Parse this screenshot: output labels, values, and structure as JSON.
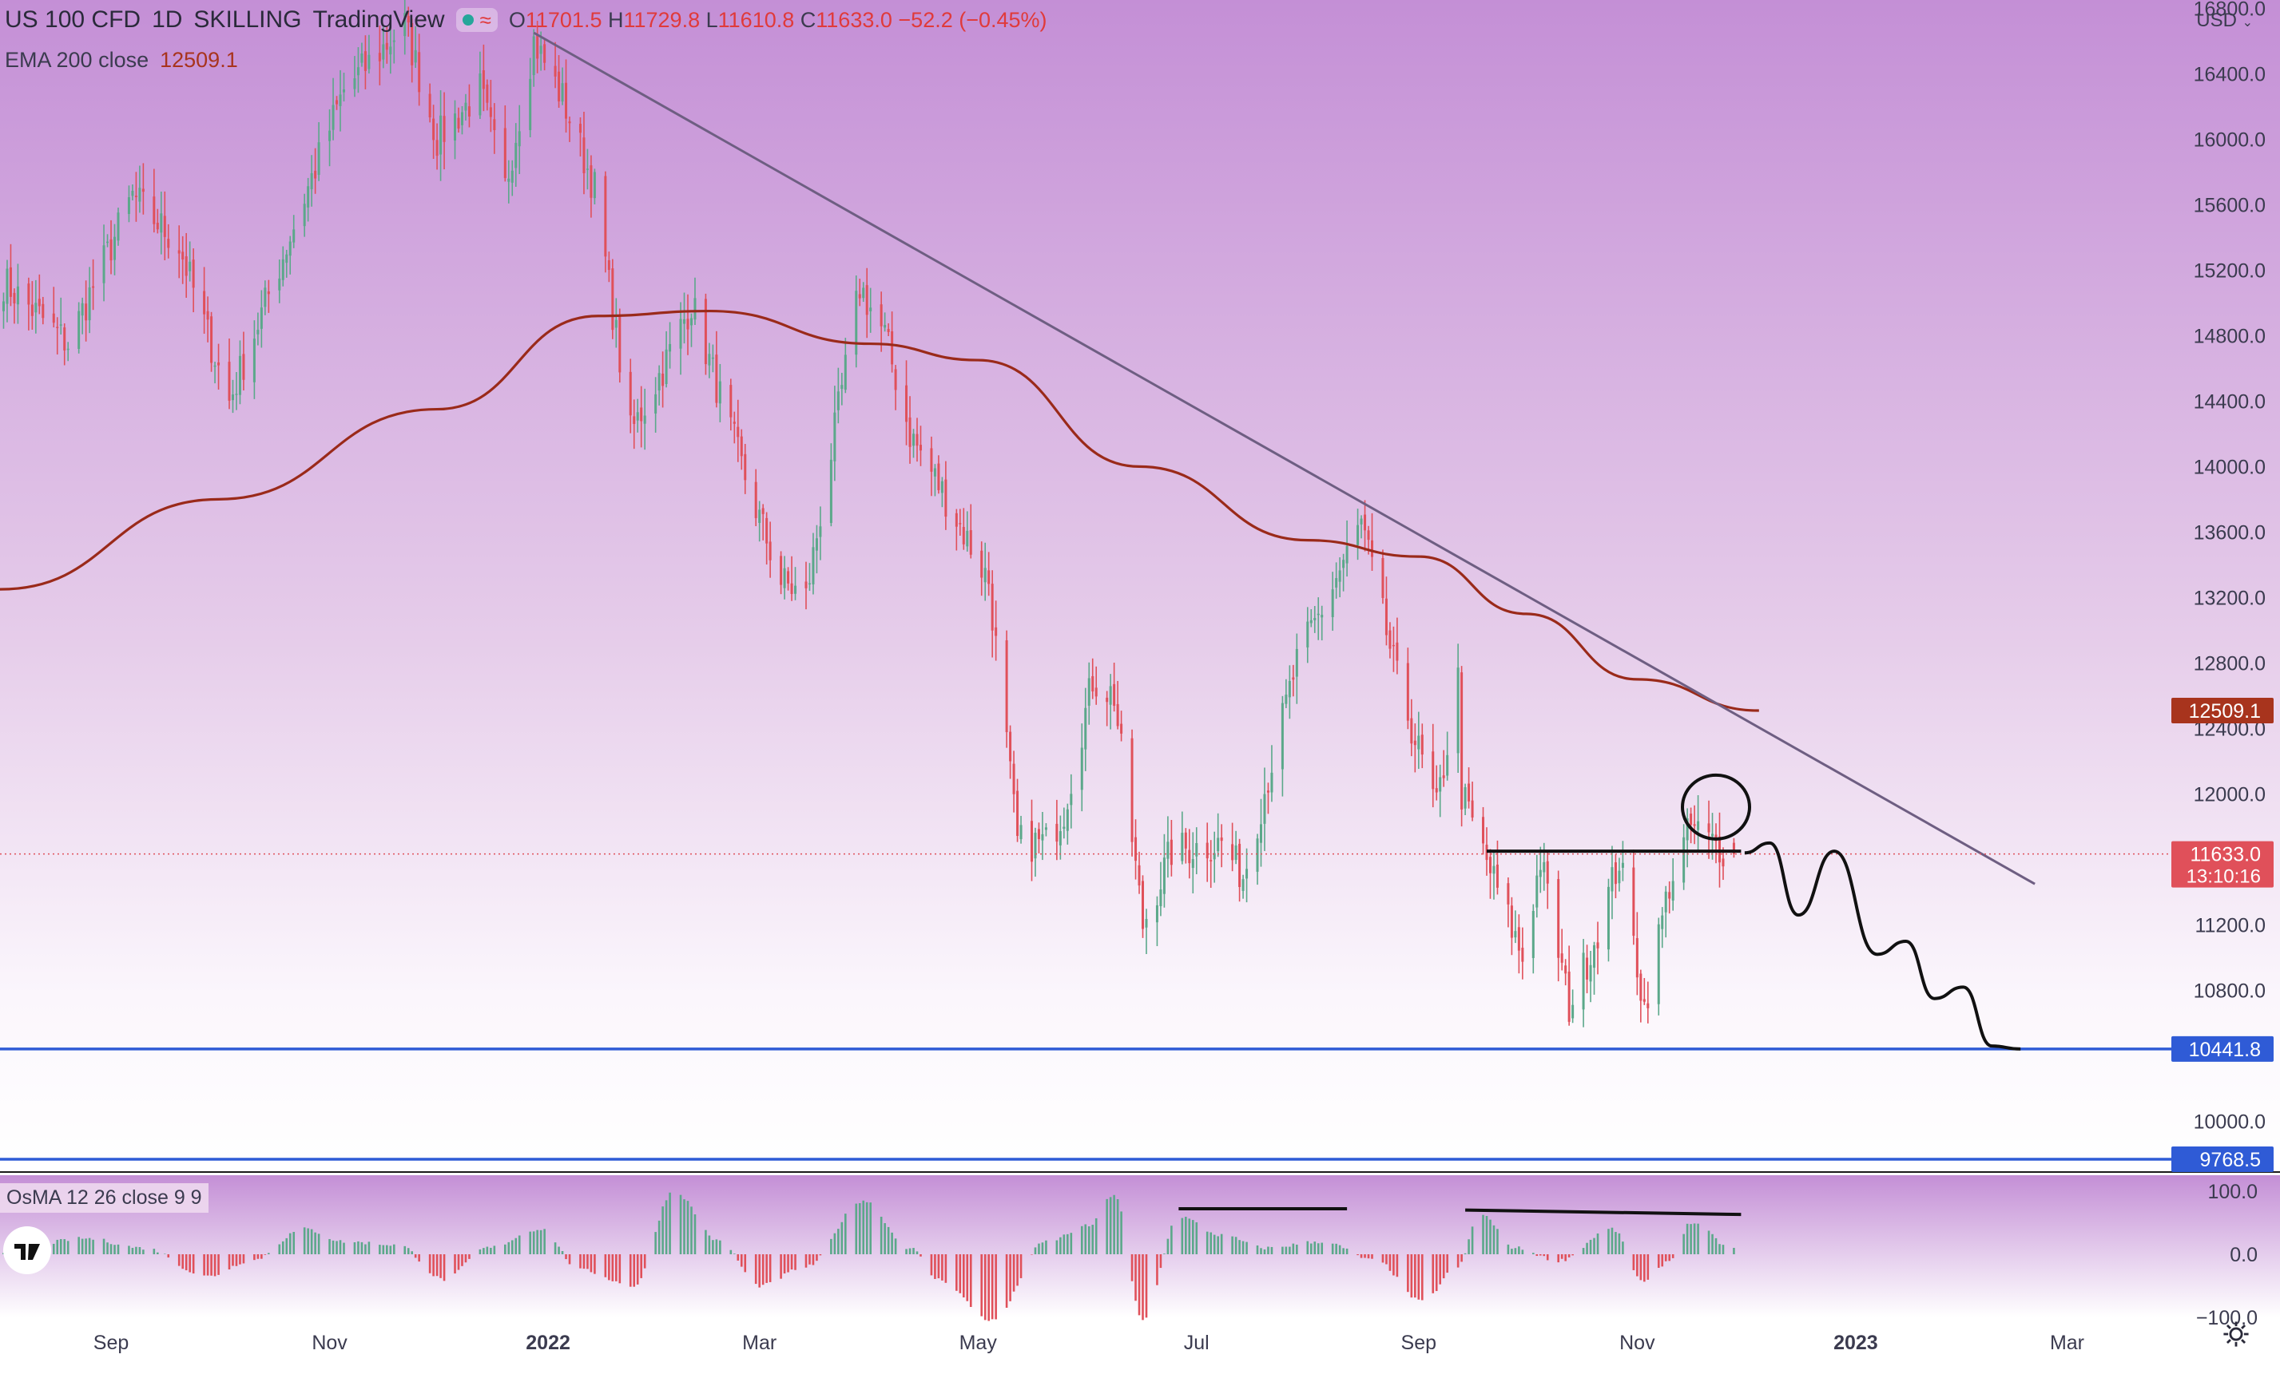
{
  "header": {
    "symbol": "US 100 CFD",
    "interval": "1D",
    "broker": "SKILLING",
    "platform": "TradingView",
    "ohlc": {
      "o_label": "O",
      "o": "11701.5",
      "h_label": "H",
      "h": "11729.8",
      "l_label": "L",
      "l": "11610.8",
      "c_label": "C",
      "c": "11633.0",
      "change": "−52.2 (−0.45%)"
    },
    "currency": "USD",
    "currency_menu_icon": "chevron-down-icon"
  },
  "ema_legend": {
    "label": "EMA 200 close",
    "value": "12509.1"
  },
  "osma_legend": {
    "label": "OsMA 12 26 close 9 9"
  },
  "price_axis_ticks": [
    "16800.0",
    "16400.0",
    "16000.0",
    "15600.0",
    "15200.0",
    "14800.0",
    "14400.0",
    "14000.0",
    "13600.0",
    "13200.0",
    "12800.0",
    "12400.0",
    "12000.0",
    "11200.0",
    "10800.0",
    "10000.0"
  ],
  "price_axis_tick_values": [
    16800,
    16400,
    16000,
    15600,
    15200,
    14800,
    14400,
    14000,
    13600,
    13200,
    12800,
    12400,
    12000,
    11200,
    10800,
    10000
  ],
  "price_labels": {
    "ema": "12509.1",
    "close": "11633.0",
    "countdown": "13:10:16",
    "support_1": "10441.8",
    "support_2": "9768.5"
  },
  "osma_axis_ticks": [
    "100.0",
    "0.0",
    "−100.0"
  ],
  "time_axis_labels": [
    "Sep",
    "Nov",
    "2022",
    "Mar",
    "May",
    "Jul",
    "Sep",
    "Nov",
    "2023",
    "Mar"
  ],
  "bold_time_labels": [
    "2022",
    "2023"
  ],
  "logo": "tradingview-logo-icon",
  "settings_icon": "gear-icon",
  "colors": {
    "bg_top": "#c48fd6",
    "bg_bottom": "#ffffff",
    "up": "#5ba88a",
    "down": "#e0505a",
    "ema": "#9a2a1a",
    "trendline": "#6e5e82",
    "support": "#2f5bd6",
    "annotation": "#111111",
    "close_label": "#e0505a",
    "ema_label": "#a8341d",
    "support_label": "#2f5bd6"
  },
  "chart_data": [
    {
      "type": "candlestick",
      "title": "US 100 CFD · 1D · SKILLING",
      "ylim": [
        9700,
        16850
      ],
      "x_range": [
        "2021-08-01",
        "2023-03-31"
      ],
      "last": {
        "open": 11701.5,
        "high": 11729.8,
        "low": 11610.8,
        "close": 11633.0,
        "change": -52.2,
        "change_pct": -0.45
      },
      "anchors": [
        {
          "date": "2021-08-01",
          "close": 15150
        },
        {
          "date": "2021-08-20",
          "close": 14750
        },
        {
          "date": "2021-09-07",
          "close": 15650
        },
        {
          "date": "2021-09-20",
          "close": 15350
        },
        {
          "date": "2021-10-04",
          "close": 14400
        },
        {
          "date": "2021-10-15",
          "close": 15050
        },
        {
          "date": "2021-11-05",
          "close": 16300
        },
        {
          "date": "2021-11-22",
          "close": 16700
        },
        {
          "date": "2021-12-01",
          "close": 16000
        },
        {
          "date": "2021-12-13",
          "close": 16300
        },
        {
          "date": "2021-12-20",
          "close": 15700
        },
        {
          "date": "2021-12-28",
          "close": 16600
        },
        {
          "date": "2022-01-05",
          "close": 16250
        },
        {
          "date": "2022-01-14",
          "close": 15700
        },
        {
          "date": "2022-01-24",
          "close": 14200
        },
        {
          "date": "2022-02-02",
          "close": 14600
        },
        {
          "date": "2022-02-10",
          "close": 15000
        },
        {
          "date": "2022-02-24",
          "close": 14000
        },
        {
          "date": "2022-03-07",
          "close": 13300
        },
        {
          "date": "2022-03-14",
          "close": 13200
        },
        {
          "date": "2022-03-29",
          "close": 15100
        },
        {
          "date": "2022-04-05",
          "close": 14800
        },
        {
          "date": "2022-04-12",
          "close": 14200
        },
        {
          "date": "2022-04-21",
          "close": 13850
        },
        {
          "date": "2022-05-04",
          "close": 13300
        },
        {
          "date": "2022-05-12",
          "close": 11700
        },
        {
          "date": "2022-05-20",
          "close": 11700
        },
        {
          "date": "2022-05-25",
          "close": 11900
        },
        {
          "date": "2022-06-02",
          "close": 12700
        },
        {
          "date": "2022-06-08",
          "close": 12600
        },
        {
          "date": "2022-06-16",
          "close": 11200
        },
        {
          "date": "2022-06-24",
          "close": 11650
        },
        {
          "date": "2022-07-08",
          "close": 11700
        },
        {
          "date": "2022-07-14",
          "close": 11500
        },
        {
          "date": "2022-07-29",
          "close": 12800
        },
        {
          "date": "2022-08-16",
          "close": 13650
        },
        {
          "date": "2022-08-26",
          "close": 12700
        },
        {
          "date": "2022-09-06",
          "close": 11900
        },
        {
          "date": "2022-09-12",
          "close": 12700
        },
        {
          "date": "2022-09-13",
          "close": 12000
        },
        {
          "date": "2022-09-30",
          "close": 11000
        },
        {
          "date": "2022-10-05",
          "close": 11600
        },
        {
          "date": "2022-10-13",
          "close": 10700
        },
        {
          "date": "2022-10-20",
          "close": 11100
        },
        {
          "date": "2022-10-27",
          "close": 11600
        },
        {
          "date": "2022-11-03",
          "close": 10700
        },
        {
          "date": "2022-11-10",
          "close": 11450
        },
        {
          "date": "2022-11-16",
          "close": 11800
        },
        {
          "date": "2022-11-22",
          "close": 11700
        },
        {
          "date": "2022-11-28",
          "close": 11633
        }
      ]
    },
    {
      "type": "line",
      "name": "EMA 200 close",
      "x": [
        "2021-08-01",
        "2021-10-01",
        "2021-12-01",
        "2022-01-15",
        "2022-02-15",
        "2022-04-01",
        "2022-05-01",
        "2022-06-15",
        "2022-08-01",
        "2022-09-01",
        "2022-10-01",
        "2022-11-01",
        "2022-12-05"
      ],
      "y": [
        13250,
        13800,
        14350,
        14920,
        14950,
        14750,
        14650,
        14000,
        13550,
        13450,
        13100,
        12700,
        12509.1
      ]
    },
    {
      "type": "annotations",
      "trendline": {
        "from": [
          "2021-12-28",
          16650
        ],
        "to": [
          "2023-02-20",
          11450
        ]
      },
      "horizontal_levels": [
        10441.8,
        9768.5
      ],
      "resistance_segment": {
        "from": [
          "2022-09-20",
          11650
        ],
        "to": [
          "2022-11-30",
          11650
        ]
      },
      "circle_center": [
        "2022-11-23",
        11920
      ],
      "projection_path": [
        [
          "2022-12-01",
          11640
        ],
        [
          "2022-12-08",
          11700
        ],
        [
          "2022-12-16",
          11260
        ],
        [
          "2022-12-26",
          11650
        ],
        [
          "2023-01-07",
          11020
        ],
        [
          "2023-01-15",
          11100
        ],
        [
          "2023-01-23",
          10750
        ],
        [
          "2023-01-31",
          10820
        ],
        [
          "2023-02-08",
          10460
        ],
        [
          "2023-02-16",
          10441.8
        ]
      ]
    },
    {
      "type": "bar",
      "name": "OsMA 12 26 close 9 9",
      "ylim": [
        -110,
        110
      ],
      "anchors": [
        {
          "date": "2021-08-01",
          "v": 5
        },
        {
          "date": "2021-08-25",
          "v": 25
        },
        {
          "date": "2021-09-10",
          "v": 10
        },
        {
          "date": "2021-09-28",
          "v": -35
        },
        {
          "date": "2021-10-10",
          "v": -10
        },
        {
          "date": "2021-10-25",
          "v": 40
        },
        {
          "date": "2021-11-05",
          "v": 20
        },
        {
          "date": "2021-11-20",
          "v": 15
        },
        {
          "date": "2021-12-03",
          "v": -40
        },
        {
          "date": "2021-12-15",
          "v": 10
        },
        {
          "date": "2021-12-30",
          "v": 40
        },
        {
          "date": "2022-01-10",
          "v": -25
        },
        {
          "date": "2022-01-25",
          "v": -50
        },
        {
          "date": "2022-02-05",
          "v": 100
        },
        {
          "date": "2022-02-18",
          "v": 20
        },
        {
          "date": "2022-03-01",
          "v": -50
        },
        {
          "date": "2022-03-14",
          "v": -20
        },
        {
          "date": "2022-03-30",
          "v": 85
        },
        {
          "date": "2022-04-12",
          "v": 10
        },
        {
          "date": "2022-04-20",
          "v": -40
        },
        {
          "date": "2022-05-05",
          "v": -105
        },
        {
          "date": "2022-05-20",
          "v": 20
        },
        {
          "date": "2022-06-01",
          "v": 45
        },
        {
          "date": "2022-06-08",
          "v": 95
        },
        {
          "date": "2022-06-16",
          "v": -105
        },
        {
          "date": "2022-06-26",
          "v": 60
        },
        {
          "date": "2022-07-08",
          "v": 30
        },
        {
          "date": "2022-07-20",
          "v": 10
        },
        {
          "date": "2022-08-05",
          "v": 20
        },
        {
          "date": "2022-08-20",
          "v": -10
        },
        {
          "date": "2022-09-02",
          "v": -75
        },
        {
          "date": "2022-09-12",
          "v": -20
        },
        {
          "date": "2022-09-18",
          "v": 65
        },
        {
          "date": "2022-09-28",
          "v": 10
        },
        {
          "date": "2022-10-10",
          "v": -10
        },
        {
          "date": "2022-10-25",
          "v": 40
        },
        {
          "date": "2022-11-03",
          "v": -45
        },
        {
          "date": "2022-11-10",
          "v": -10
        },
        {
          "date": "2022-11-16",
          "v": 50
        },
        {
          "date": "2022-11-28",
          "v": 8
        }
      ],
      "annotation_lines": [
        {
          "from": [
            "2022-06-26",
            72
          ],
          "to": [
            "2022-08-12",
            72
          ]
        },
        {
          "from": [
            "2022-09-14",
            70
          ],
          "to": [
            "2022-11-30",
            63
          ]
        }
      ]
    }
  ]
}
